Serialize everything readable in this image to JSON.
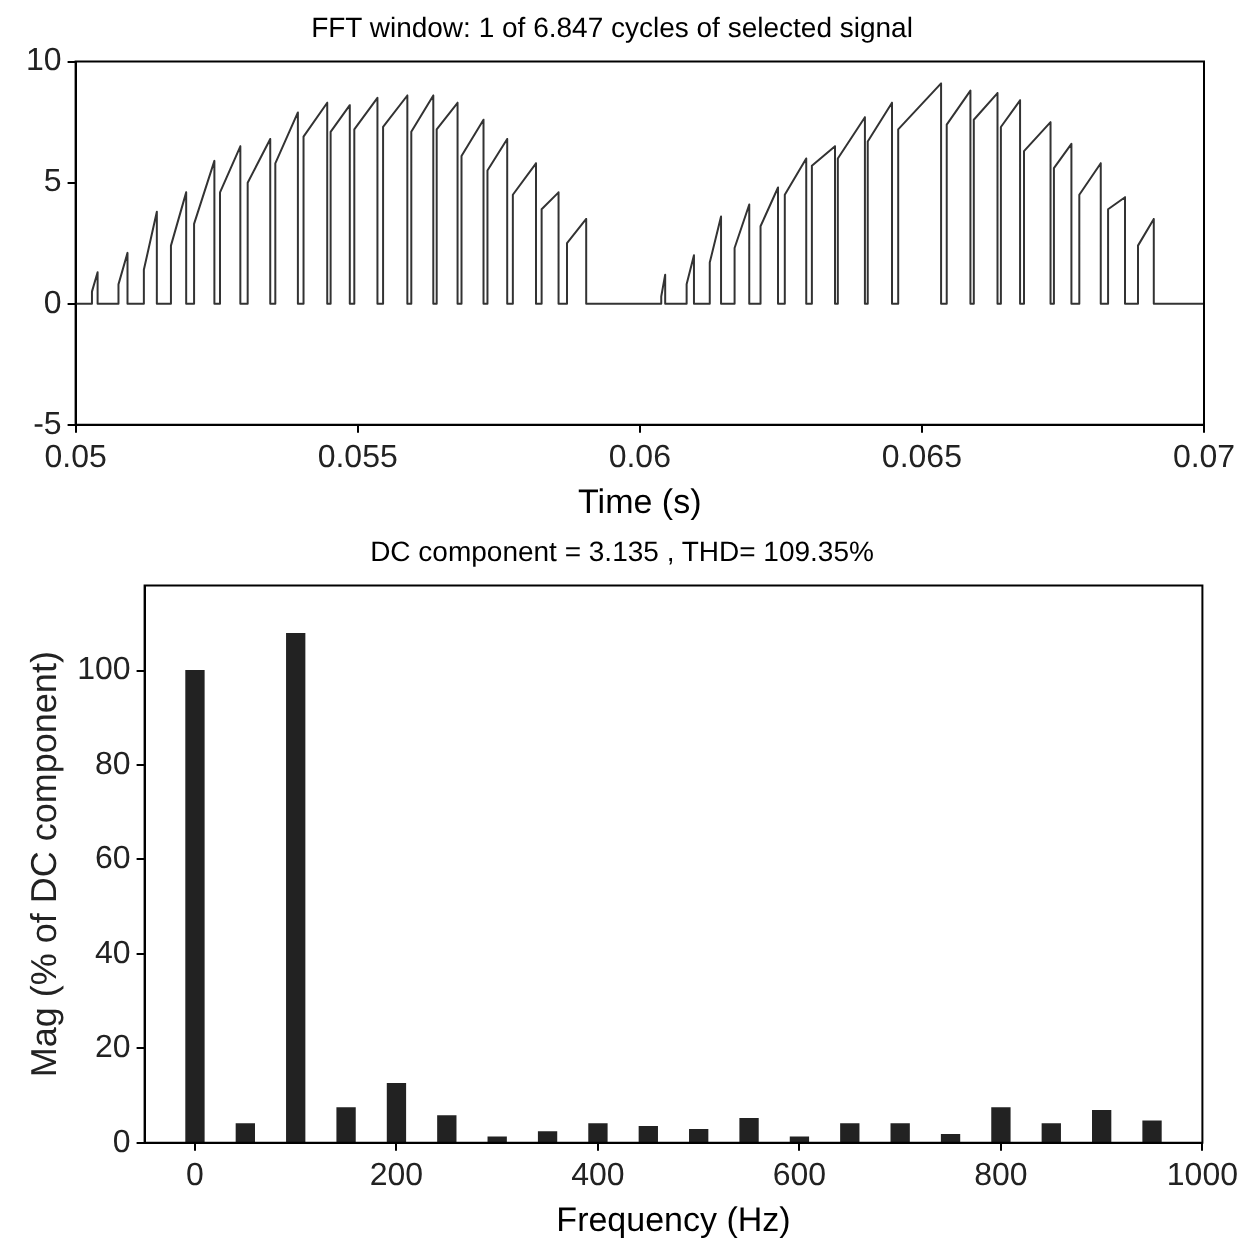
{
  "chart_data": [
    {
      "type": "line",
      "title": "FFT window: 1 of 6.847 cycles of selected signal",
      "xlabel": "Time (s)",
      "xlim": [
        0.05,
        0.07
      ],
      "xticks": [
        0.05,
        0.055,
        0.06,
        0.065,
        0.07
      ],
      "ylim": [
        -5,
        10
      ],
      "yticks": [
        -5,
        0,
        5,
        10
      ],
      "grid": false,
      "legend": false,
      "marker": "none",
      "line_style": "solid",
      "series": [
        {
          "color": "#333333",
          "x": [
            0.05,
            0.05029,
            0.05029,
            0.05039,
            0.05039,
            0.05076,
            0.05076,
            0.05092,
            0.05092,
            0.05121,
            0.05121,
            0.05144,
            0.05144,
            0.05169,
            0.05169,
            0.05196,
            0.05196,
            0.0521,
            0.0521,
            0.05246,
            0.05246,
            0.05256,
            0.05256,
            0.05292,
            0.05292,
            0.05305,
            0.05305,
            0.05345,
            0.05345,
            0.05354,
            0.05354,
            0.05394,
            0.05394,
            0.05404,
            0.05404,
            0.05446,
            0.05446,
            0.05452,
            0.05452,
            0.05486,
            0.05486,
            0.05494,
            0.05494,
            0.05535,
            0.05535,
            0.05545,
            0.05545,
            0.05588,
            0.05588,
            0.05595,
            0.05595,
            0.05634,
            0.05634,
            0.0564,
            0.0564,
            0.05677,
            0.05677,
            0.05684,
            0.05684,
            0.05723,
            0.05723,
            0.0573,
            0.0573,
            0.05765,
            0.05765,
            0.05775,
            0.05775,
            0.05816,
            0.05816,
            0.05826,
            0.05826,
            0.05856,
            0.05856,
            0.05871,
            0.05871,
            0.05905,
            0.05905,
            0.06038,
            0.06038,
            0.06045,
            0.06045,
            0.06083,
            0.06083,
            0.06096,
            0.06096,
            0.06124,
            0.06124,
            0.06144,
            0.06144,
            0.06168,
            0.06168,
            0.06194,
            0.06194,
            0.06214,
            0.06214,
            0.06245,
            0.06245,
            0.06257,
            0.06257,
            0.06295,
            0.06295,
            0.06305,
            0.06305,
            0.06346,
            0.06346,
            0.06351,
            0.06351,
            0.06399,
            0.06399,
            0.06404,
            0.06404,
            0.06447,
            0.06447,
            0.06458,
            0.06458,
            0.06534,
            0.06534,
            0.06544,
            0.06544,
            0.06586,
            0.06586,
            0.06592,
            0.06592,
            0.06634,
            0.06634,
            0.0664,
            0.0664,
            0.06674,
            0.06674,
            0.06681,
            0.06681,
            0.06728,
            0.06728,
            0.06734,
            0.06734,
            0.06765,
            0.06765,
            0.06779,
            0.06779,
            0.06817,
            0.06817,
            0.0683,
            0.0683,
            0.0686,
            0.0686,
            0.06883,
            0.06883,
            0.06911,
            0.06911,
            0.07
          ],
          "values": [
            0,
            0,
            0.5,
            1.3,
            0,
            0,
            0.8,
            2.1,
            0,
            0,
            1.4,
            3.8,
            0,
            0,
            2.4,
            4.6,
            0,
            0,
            3.3,
            5.9,
            0,
            0,
            4.6,
            6.5,
            0,
            0,
            5.0,
            6.8,
            0,
            0,
            5.8,
            7.9,
            0,
            0,
            6.9,
            8.3,
            0,
            0,
            7.1,
            8.2,
            0,
            0,
            7.2,
            8.5,
            0,
            0,
            7.3,
            8.6,
            0,
            0,
            7.1,
            8.6,
            0,
            0,
            7.2,
            8.3,
            0,
            0,
            6.1,
            7.6,
            0,
            0,
            5.5,
            6.8,
            0,
            0,
            4.5,
            5.8,
            0,
            0,
            3.9,
            4.6,
            0,
            0,
            2.5,
            3.5,
            0,
            0,
            0.3,
            1.2,
            0,
            0,
            0.8,
            2.0,
            0,
            0,
            1.7,
            3.6,
            0,
            0,
            2.3,
            4.1,
            0,
            0,
            3.2,
            4.8,
            0,
            0,
            4.5,
            6.0,
            0,
            0,
            5.7,
            6.5,
            0,
            0,
            6.0,
            7.7,
            0,
            0,
            6.7,
            8.3,
            0,
            0,
            7.2,
            9.1,
            0,
            0,
            7.4,
            8.8,
            0,
            0,
            7.6,
            8.7,
            0,
            0,
            7.3,
            8.4,
            0,
            0,
            6.3,
            7.5,
            0,
            0,
            5.6,
            6.6,
            0,
            0,
            4.5,
            5.8,
            0,
            0,
            3.9,
            4.4,
            0,
            0,
            2.4,
            3.5,
            0,
            0
          ]
        }
      ]
    },
    {
      "type": "bar",
      "title": "DC component = 3.135 , THD= 109.35%",
      "xlabel": "Frequency (Hz)",
      "ylabel": "Mag (% of DC component)",
      "xlim": [
        -50,
        1000
      ],
      "xticks": [
        0,
        200,
        400,
        600,
        800,
        1000
      ],
      "ylim": [
        0,
        118
      ],
      "yticks": [
        0,
        20,
        40,
        60,
        80,
        100
      ],
      "grid": false,
      "legend": false,
      "x": [
        0,
        50,
        100,
        150,
        200,
        250,
        300,
        350,
        400,
        450,
        500,
        550,
        600,
        650,
        700,
        750,
        800,
        850,
        900,
        950
      ],
      "series": [
        {
          "color": "#222222",
          "values": [
            100,
            4,
            107.8,
            7.4,
            12.5,
            5.7,
            1.2,
            2.3,
            4,
            3.4,
            2.8,
            5.1,
            1.2,
            4,
            4,
            1.7,
            7.4,
            4,
            6.8,
            4.6
          ]
        }
      ]
    }
  ]
}
